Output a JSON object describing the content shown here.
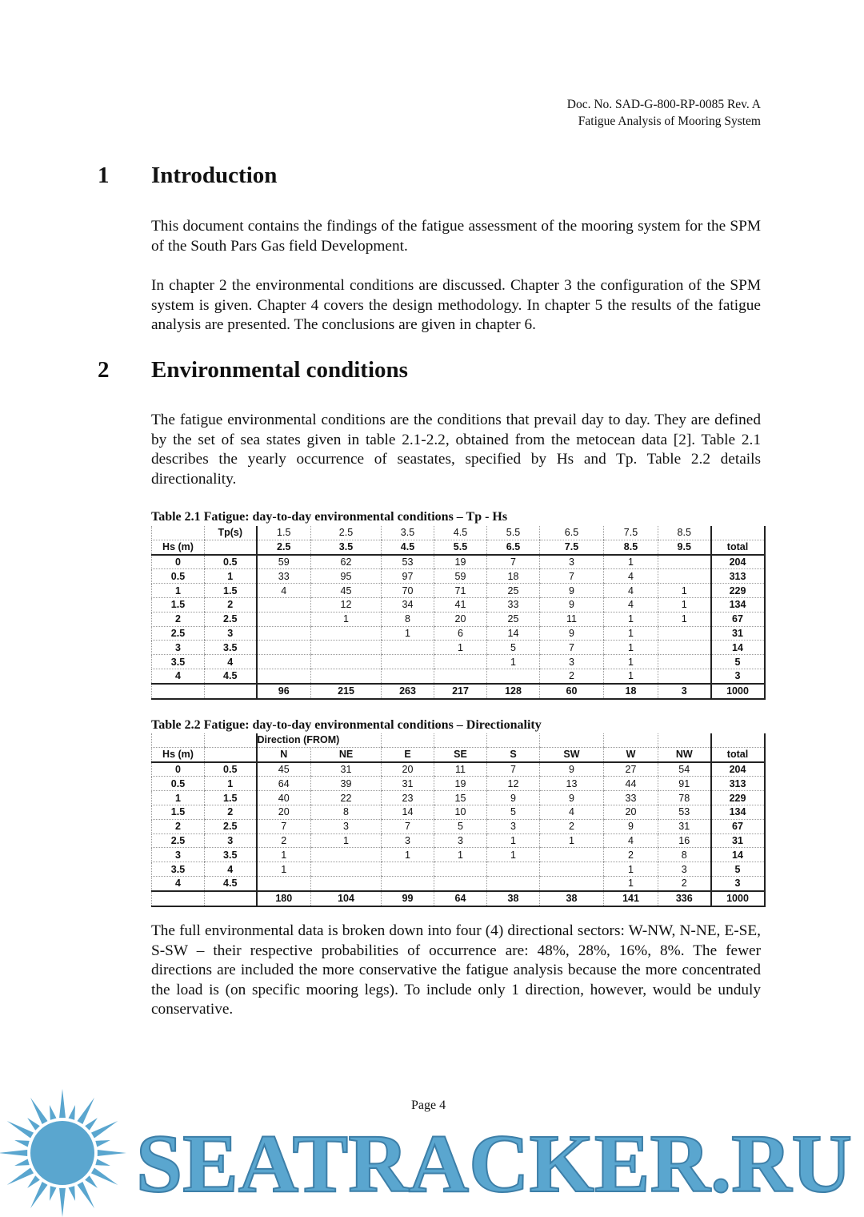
{
  "header": {
    "doc_no": "Doc. No. SAD-G-800-RP-0085 Rev. A",
    "title": "Fatigue Analysis of Mooring System"
  },
  "sections": [
    {
      "number": "1",
      "title": "Introduction",
      "paragraphs": [
        "This document contains the findings of the fatigue assessment of the mooring system for the SPM of the South Pars Gas field Development.",
        "In chapter 2 the environmental conditions are discussed. Chapter 3 the configuration of the SPM system is given. Chapter 4 covers the design methodology. In chapter 5 the results of the fatigue analysis are presented. The conclusions are given in chapter 6."
      ]
    },
    {
      "number": "2",
      "title": "Environmental conditions",
      "paragraphs": [
        "The fatigue environmental conditions are the conditions that prevail day to day. They are defined by the set of sea states given in table 2.1-2.2, obtained from the metocean data [2]. Table 2.1 describes the yearly occurrence of seastates, specified by Hs and Tp. Table 2.2 details directionality.",
        "The full environmental data is broken down into four (4) directional sectors: W-NW, N-NE, E-SE, S-SW – their respective probabilities of occurrence are: 48%, 28%, 16%, 8%. The fewer directions are included the more conservative the fatigue analysis because the more concentrated the load is (on specific mooring legs). To include only 1 direction, however, would be unduly conservative."
      ]
    }
  ],
  "table1": {
    "caption": "Table 2.1 Fatigue: day-to-day environmental conditions – Tp - Hs",
    "header1": [
      "",
      "Tp(s)",
      "1.5",
      "2.5",
      "3.5",
      "4.5",
      "5.5",
      "6.5",
      "7.5",
      "8.5",
      ""
    ],
    "header2": [
      "Hs (m)",
      "",
      "2.5",
      "3.5",
      "4.5",
      "5.5",
      "6.5",
      "7.5",
      "8.5",
      "9.5",
      "total"
    ],
    "rows": [
      [
        "0",
        "0.5",
        "59",
        "62",
        "53",
        "19",
        "7",
        "3",
        "1",
        "",
        "204"
      ],
      [
        "0.5",
        "1",
        "33",
        "95",
        "97",
        "59",
        "18",
        "7",
        "4",
        "",
        "313"
      ],
      [
        "1",
        "1.5",
        "4",
        "45",
        "70",
        "71",
        "25",
        "9",
        "4",
        "1",
        "229"
      ],
      [
        "1.5",
        "2",
        "",
        "12",
        "34",
        "41",
        "33",
        "9",
        "4",
        "1",
        "134"
      ],
      [
        "2",
        "2.5",
        "",
        "1",
        "8",
        "20",
        "25",
        "11",
        "1",
        "1",
        "67"
      ],
      [
        "2.5",
        "3",
        "",
        "",
        "1",
        "6",
        "14",
        "9",
        "1",
        "",
        "31"
      ],
      [
        "3",
        "3.5",
        "",
        "",
        "",
        "1",
        "5",
        "7",
        "1",
        "",
        "14"
      ],
      [
        "3.5",
        "4",
        "",
        "",
        "",
        "",
        "1",
        "3",
        "1",
        "",
        "5"
      ],
      [
        "4",
        "4.5",
        "",
        "",
        "",
        "",
        "",
        "2",
        "1",
        "",
        "3"
      ]
    ],
    "totals": [
      "",
      "",
      "96",
      "215",
      "263",
      "217",
      "128",
      "60",
      "18",
      "3",
      "1000"
    ]
  },
  "table2": {
    "caption": "Table 2.2 Fatigue: day-to-day environmental conditions – Directionality",
    "header1": [
      "",
      "",
      "Direction (FROM)",
      "",
      "",
      "",
      "",
      "",
      "",
      "",
      ""
    ],
    "header2": [
      "Hs (m)",
      "",
      "N",
      "NE",
      "E",
      "SE",
      "S",
      "SW",
      "W",
      "NW",
      "total"
    ],
    "rows": [
      [
        "0",
        "0.5",
        "45",
        "31",
        "20",
        "11",
        "7",
        "9",
        "27",
        "54",
        "204"
      ],
      [
        "0.5",
        "1",
        "64",
        "39",
        "31",
        "19",
        "12",
        "13",
        "44",
        "91",
        "313"
      ],
      [
        "1",
        "1.5",
        "40",
        "22",
        "23",
        "15",
        "9",
        "9",
        "33",
        "78",
        "229"
      ],
      [
        "1.5",
        "2",
        "20",
        "8",
        "14",
        "10",
        "5",
        "4",
        "20",
        "53",
        "134"
      ],
      [
        "2",
        "2.5",
        "7",
        "3",
        "7",
        "5",
        "3",
        "2",
        "9",
        "31",
        "67"
      ],
      [
        "2.5",
        "3",
        "2",
        "1",
        "3",
        "3",
        "1",
        "1",
        "4",
        "16",
        "31"
      ],
      [
        "3",
        "3.5",
        "1",
        "",
        "1",
        "1",
        "1",
        "",
        "2",
        "8",
        "14"
      ],
      [
        "3.5",
        "4",
        "1",
        "",
        "",
        "",
        "",
        "",
        "1",
        "3",
        "5"
      ],
      [
        "4",
        "4.5",
        "",
        "",
        "",
        "",
        "",
        "",
        "1",
        "2",
        "3"
      ]
    ],
    "totals": [
      "",
      "",
      "180",
      "104",
      "99",
      "64",
      "38",
      "38",
      "141",
      "336",
      "1000"
    ]
  },
  "footer": {
    "page": "Page 4"
  },
  "watermark": {
    "text": "SEATRACKER.RU",
    "icon": "sun-icon",
    "color": "#5aa6cf"
  }
}
